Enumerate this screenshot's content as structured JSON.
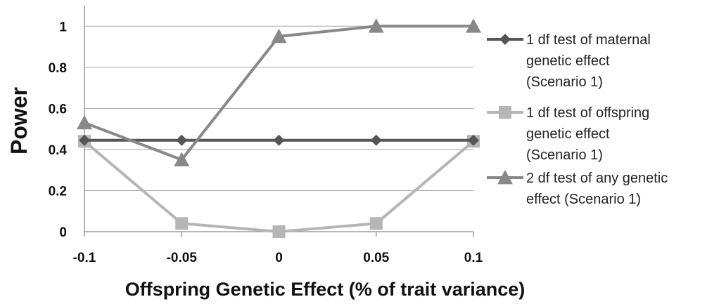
{
  "chart_data": {
    "type": "line",
    "x": [
      -0.1,
      -0.05,
      0,
      0.05,
      0.1
    ],
    "x_tick_labels": [
      "-0.1",
      "-0.05",
      "0",
      "0.05",
      "0.1"
    ],
    "y_tick_labels": [
      "0",
      "0.2",
      "0.4",
      "0.6",
      "0.8",
      "1"
    ],
    "ylim": [
      0,
      1.1
    ],
    "xlabel": "Offspring Genetic Effect (% of trait variance)",
    "ylabel": "Power",
    "grid": "horizontal",
    "legend_position": "right",
    "series": [
      {
        "name": "1 df test of maternal genetic effect (Scenario 1)",
        "legend_lines": [
          "1 df test of maternal",
          "genetic effect",
          "(Scenario 1)"
        ],
        "values": [
          0.445,
          0.445,
          0.445,
          0.445,
          0.445
        ],
        "color": "#555555",
        "marker": "diamond"
      },
      {
        "name": "1 df test of offspring genetic effect (Scenario 1)",
        "legend_lines": [
          "1 df test of offspring",
          "genetic effect",
          "(Scenario 1)"
        ],
        "values": [
          0.44,
          0.04,
          0.0,
          0.04,
          0.44
        ],
        "color": "#b5b5b5",
        "marker": "square"
      },
      {
        "name": "2 df test of any genetic effect (Scenario 1)",
        "legend_lines": [
          "2 df test of any genetic",
          "effect (Scenario 1)"
        ],
        "values": [
          0.53,
          0.35,
          0.95,
          1.0,
          1.0
        ],
        "color": "#888888",
        "marker": "triangle"
      }
    ]
  }
}
